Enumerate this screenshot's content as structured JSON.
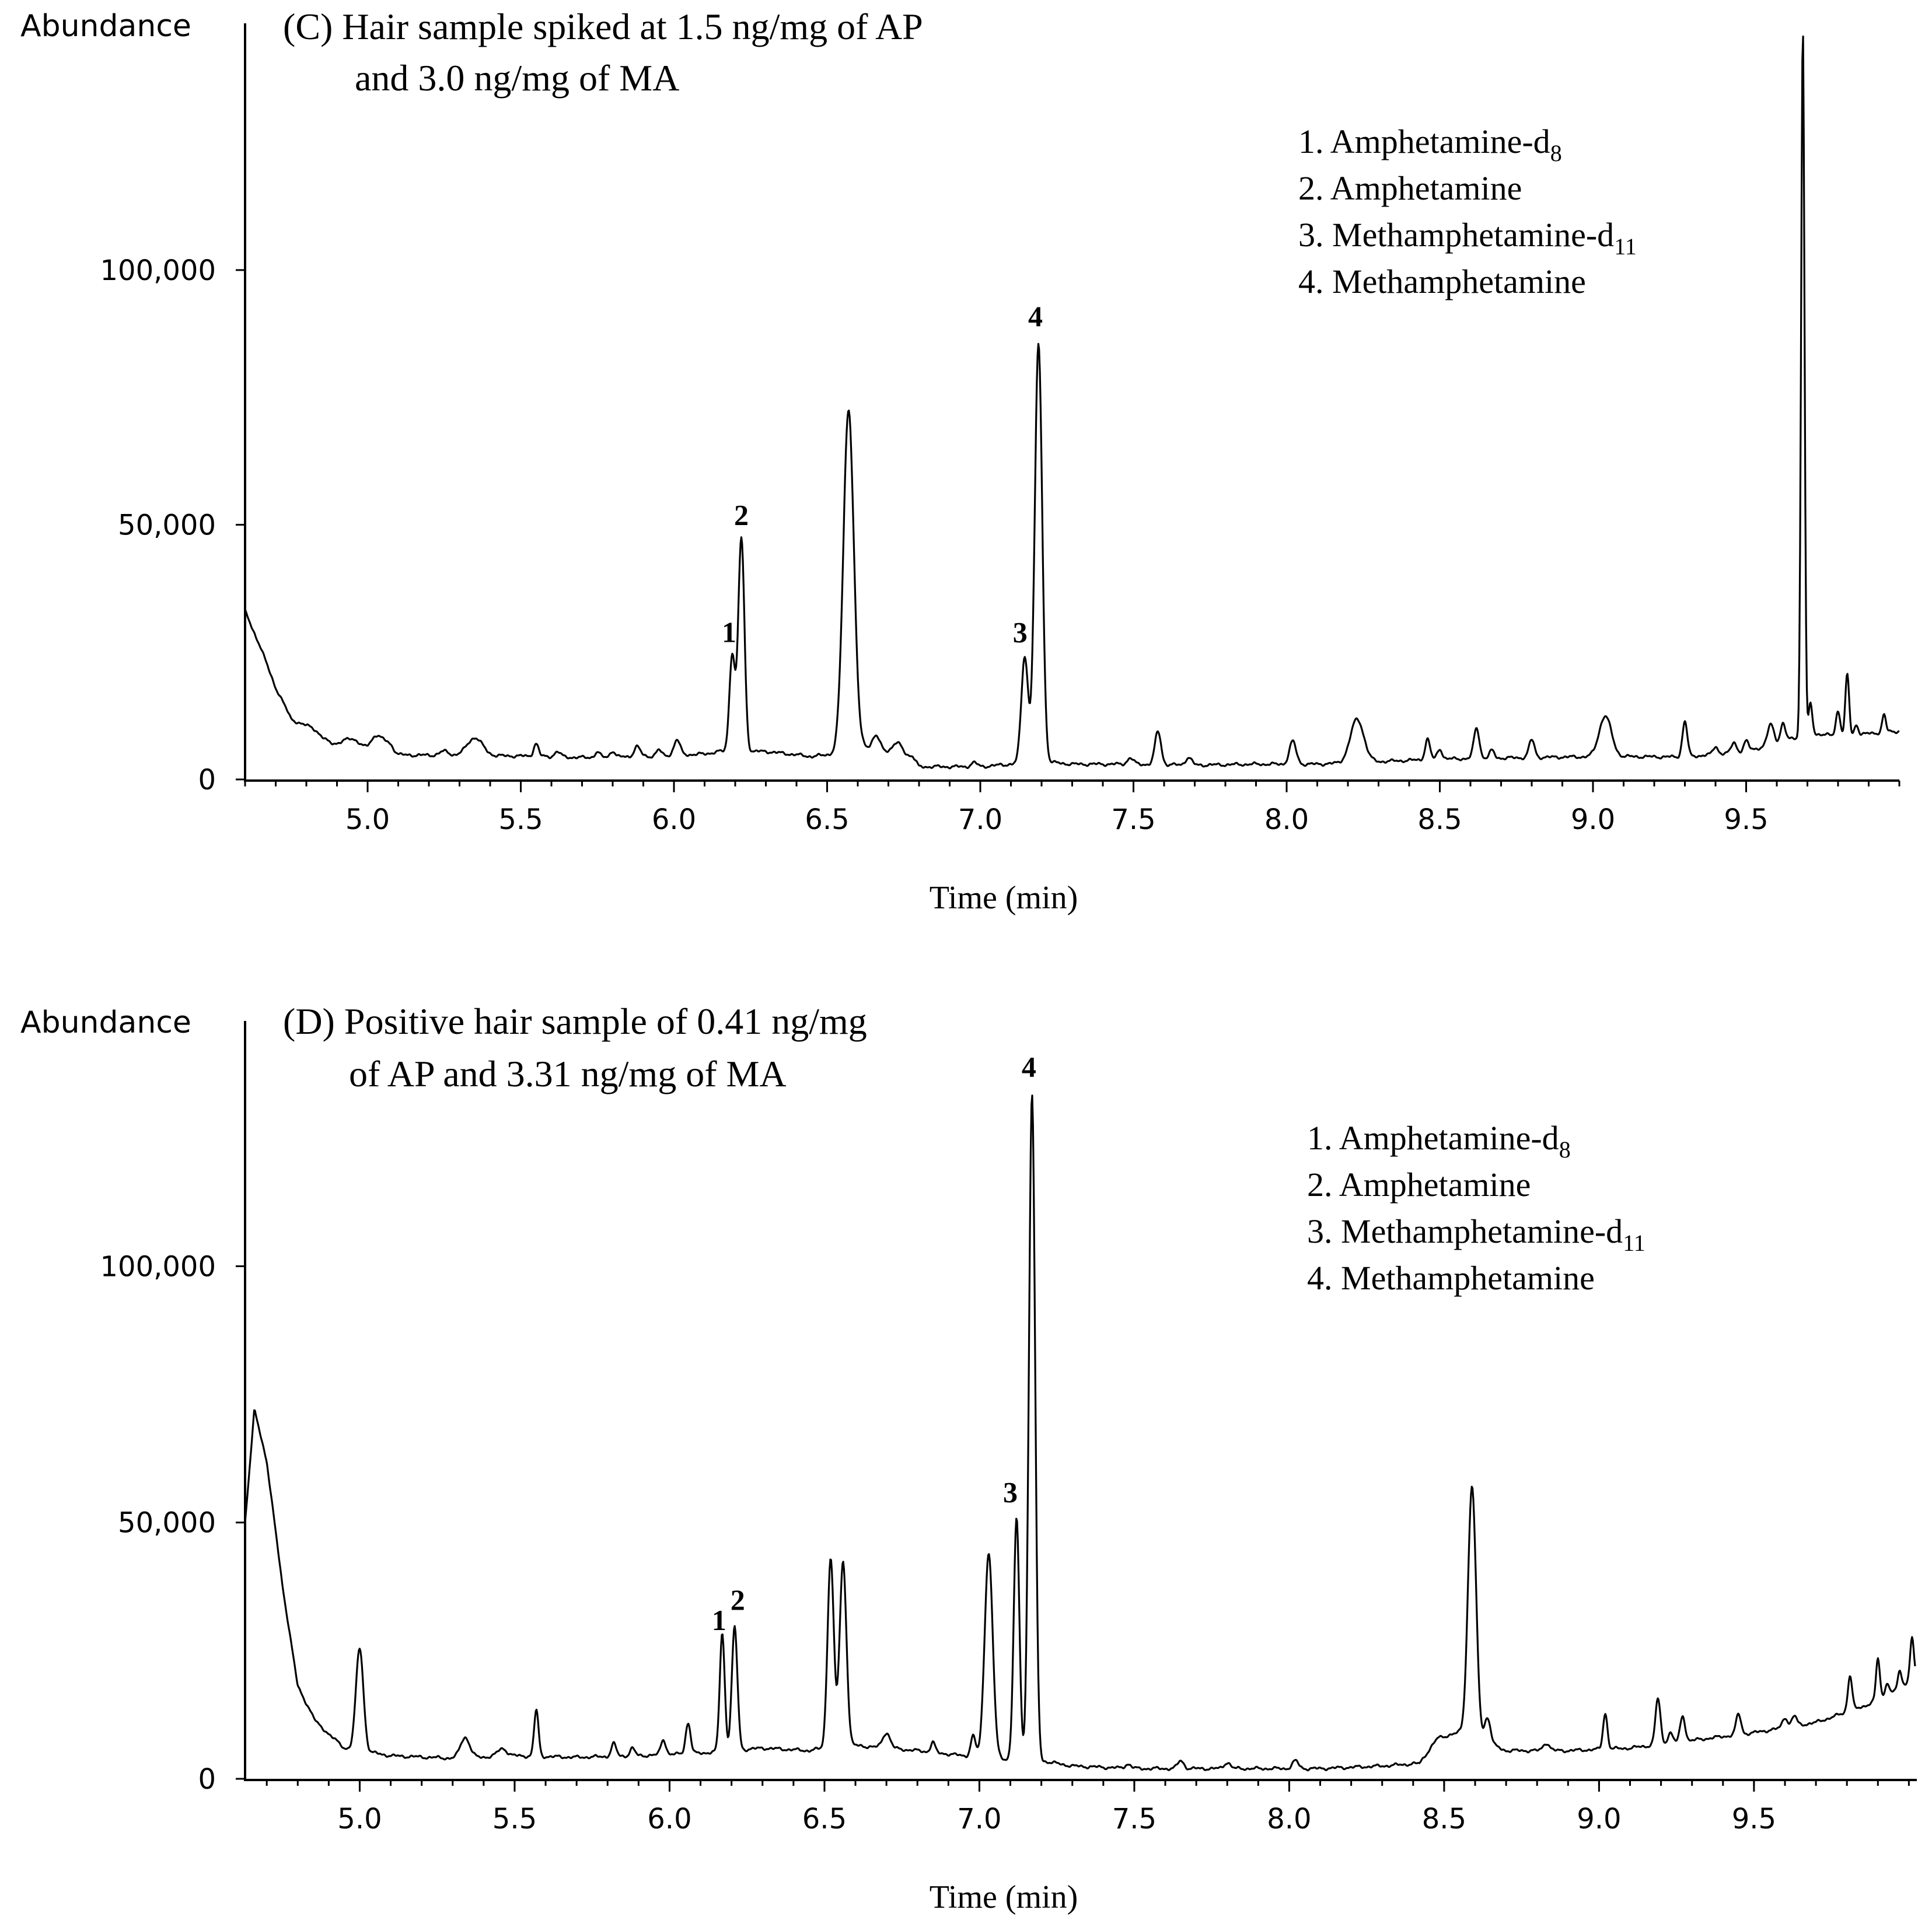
{
  "chart_data": [
    {
      "type": "line",
      "panel": "C",
      "title_line1": "(C) Hair sample spiked at 1.5 ng/mg of AP",
      "title_line2": "and  3.0 ng/mg of MA",
      "ylabel": "Abundance",
      "xlabel": "Time (min)",
      "xlim": [
        4.6,
        10.0
      ],
      "ylim": [
        0,
        145000
      ],
      "xticks": [
        "5.0",
        "5.5",
        "6.0",
        "6.5",
        "7.0",
        "7.5",
        "8.0",
        "8.5",
        "9.0",
        "9.5"
      ],
      "xtick_values": [
        5.0,
        5.5,
        6.0,
        6.5,
        7.0,
        7.5,
        8.0,
        8.5,
        9.0,
        9.5
      ],
      "yticks": [
        "0",
        "50,000",
        "100,000"
      ],
      "ytick_values": [
        0,
        50000,
        100000
      ],
      "legend": [
        {
          "num": "1.",
          "name": "Amphetamine-d",
          "sub": "8"
        },
        {
          "num": "2.",
          "name": "Amphetamine",
          "sub": ""
        },
        {
          "num": "3.",
          "name": "Methamphetamine-d",
          "sub": "11"
        },
        {
          "num": "4.",
          "name": "Methamphetamine",
          "sub": ""
        }
      ],
      "baseline": [
        [
          4.6,
          33000
        ],
        [
          4.65,
          26000
        ],
        [
          4.7,
          18000
        ],
        [
          4.75,
          12000
        ],
        [
          4.85,
          8000
        ],
        [
          4.95,
          5500
        ],
        [
          5.1,
          4800
        ],
        [
          5.3,
          4700
        ],
        [
          5.5,
          4600
        ],
        [
          5.7,
          4300
        ],
        [
          5.9,
          4500
        ],
        [
          6.1,
          5000
        ],
        [
          6.15,
          5500
        ],
        [
          6.3,
          5500
        ],
        [
          6.45,
          4500
        ],
        [
          6.52,
          5000
        ],
        [
          6.62,
          6500
        ],
        [
          6.7,
          5500
        ],
        [
          6.78,
          4500
        ],
        [
          6.8,
          2500
        ],
        [
          7.0,
          2500
        ],
        [
          7.1,
          3000
        ],
        [
          7.2,
          3500
        ],
        [
          7.3,
          3000
        ],
        [
          7.5,
          3000
        ],
        [
          7.7,
          2800
        ],
        [
          7.9,
          3000
        ],
        [
          8.1,
          3000
        ],
        [
          8.3,
          3500
        ],
        [
          8.5,
          4000
        ],
        [
          8.7,
          4200
        ],
        [
          8.9,
          4400
        ],
        [
          9.1,
          4500
        ],
        [
          9.3,
          4400
        ],
        [
          9.5,
          5500
        ],
        [
          9.65,
          8000
        ],
        [
          9.72,
          9000
        ],
        [
          9.8,
          8500
        ],
        [
          9.9,
          9000
        ],
        [
          10.0,
          9500
        ]
      ],
      "peaks": [
        [
          4.82,
          1000,
          0.02
        ],
        [
          4.95,
          2500,
          0.025
        ],
        [
          5.03,
          3500,
          0.02
        ],
        [
          5.07,
          1800,
          0.015
        ],
        [
          5.25,
          800,
          0.015
        ],
        [
          5.35,
          3500,
          0.025
        ],
        [
          5.55,
          2500,
          0.008
        ],
        [
          5.62,
          1000,
          0.01
        ],
        [
          5.75,
          1000,
          0.008
        ],
        [
          5.8,
          1200,
          0.008
        ],
        [
          5.88,
          2000,
          0.01
        ],
        [
          5.95,
          1200,
          0.008
        ],
        [
          6.01,
          3000,
          0.01
        ],
        [
          6.19,
          19000,
          0.009
        ],
        [
          6.22,
          42000,
          0.01
        ],
        [
          6.57,
          67000,
          0.017
        ],
        [
          6.66,
          2500,
          0.012
        ],
        [
          6.73,
          2000,
          0.015
        ],
        [
          6.98,
          800,
          0.01
        ],
        [
          7.145,
          21000,
          0.011
        ],
        [
          7.19,
          82000,
          0.012
        ],
        [
          7.49,
          1200,
          0.01
        ],
        [
          7.58,
          6500,
          0.01
        ],
        [
          7.68,
          1500,
          0.01
        ],
        [
          8.02,
          4500,
          0.011
        ],
        [
          8.23,
          8500,
          0.022
        ],
        [
          8.46,
          4000,
          0.008
        ],
        [
          8.5,
          2000,
          0.008
        ],
        [
          8.62,
          6000,
          0.009
        ],
        [
          8.67,
          1500,
          0.008
        ],
        [
          8.8,
          3500,
          0.009
        ],
        [
          9.04,
          8000,
          0.02
        ],
        [
          9.3,
          7000,
          0.008
        ],
        [
          9.4,
          1500,
          0.008
        ],
        [
          9.46,
          2000,
          0.008
        ],
        [
          9.5,
          2000,
          0.008
        ],
        [
          9.58,
          4000,
          0.01
        ],
        [
          9.62,
          3500,
          0.008
        ],
        [
          9.685,
          139000,
          0.0055
        ],
        [
          9.71,
          6000,
          0.006
        ],
        [
          9.8,
          5000,
          0.007
        ],
        [
          9.83,
          12000,
          0.006
        ],
        [
          9.86,
          2000,
          0.006
        ],
        [
          9.95,
          3500,
          0.006
        ]
      ],
      "peak_labels": [
        {
          "label": "1",
          "x": 6.18,
          "y": 27000
        },
        {
          "label": "2",
          "x": 6.22,
          "y": 50000
        },
        {
          "label": "3",
          "x": 7.13,
          "y": 27000
        },
        {
          "label": "4",
          "x": 7.18,
          "y": 89000
        }
      ]
    },
    {
      "type": "line",
      "panel": "D",
      "title_line1": "(D) Positive hair sample of 0.41 ng/mg",
      "title_line2": "of AP and 3.31 ng/mg of MA",
      "ylabel": "Abundance",
      "xlabel": "Time (min)",
      "xlim": [
        4.63,
        10.02
      ],
      "ylim": [
        0,
        145000
      ],
      "xticks": [
        "5.0",
        "5.5",
        "6.0",
        "6.5",
        "7.0",
        "7.5",
        "8.0",
        "8.5",
        "9.0",
        "9.5"
      ],
      "xtick_values": [
        5.0,
        5.5,
        6.0,
        6.5,
        7.0,
        7.5,
        8.0,
        8.5,
        9.0,
        9.5
      ],
      "yticks": [
        "0",
        "50,000",
        "100,000"
      ],
      "ytick_values": [
        0,
        50000,
        100000
      ],
      "legend": [
        {
          "num": "1.",
          "name": "Amphetamine-d",
          "sub": "8"
        },
        {
          "num": "2.",
          "name": "Amphetamine",
          "sub": ""
        },
        {
          "num": "3.",
          "name": "Methamphetamine-d",
          "sub": "11"
        },
        {
          "num": "4.",
          "name": "Methamphetamine",
          "sub": ""
        }
      ],
      "baseline": [
        [
          4.63,
          50000
        ],
        [
          4.66,
          72000
        ],
        [
          4.7,
          62000
        ],
        [
          4.75,
          38000
        ],
        [
          4.8,
          18000
        ],
        [
          4.86,
          11000
        ],
        [
          4.95,
          6000
        ],
        [
          5.1,
          4500
        ],
        [
          5.3,
          4000
        ],
        [
          5.5,
          4500
        ],
        [
          5.7,
          4200
        ],
        [
          5.9,
          4500
        ],
        [
          6.1,
          5000
        ],
        [
          6.3,
          6000
        ],
        [
          6.45,
          5500
        ],
        [
          6.5,
          6000
        ],
        [
          6.6,
          6500
        ],
        [
          6.8,
          5500
        ],
        [
          6.95,
          4500
        ],
        [
          7.05,
          4000
        ],
        [
          7.2,
          3500
        ],
        [
          7.3,
          2500
        ],
        [
          7.5,
          2000
        ],
        [
          7.7,
          2000
        ],
        [
          7.9,
          2000
        ],
        [
          8.1,
          2000
        ],
        [
          8.3,
          2500
        ],
        [
          8.42,
          3000
        ],
        [
          8.48,
          8000
        ],
        [
          8.55,
          9000
        ],
        [
          8.7,
          5500
        ],
        [
          8.9,
          5500
        ],
        [
          9.1,
          6000
        ],
        [
          9.3,
          7500
        ],
        [
          9.5,
          9000
        ],
        [
          9.7,
          11000
        ],
        [
          9.85,
          14000
        ],
        [
          9.95,
          17000
        ],
        [
          10.02,
          20000
        ]
      ],
      "peaks": [
        [
          5.0,
          20000,
          0.012
        ],
        [
          5.34,
          4000,
          0.015
        ],
        [
          5.46,
          1500,
          0.015
        ],
        [
          5.57,
          9000,
          0.007
        ],
        [
          5.82,
          2500,
          0.008
        ],
        [
          5.88,
          1500,
          0.008
        ],
        [
          5.98,
          3000,
          0.008
        ],
        [
          6.06,
          6000,
          0.008
        ],
        [
          6.17,
          23000,
          0.008
        ],
        [
          6.21,
          24000,
          0.009
        ],
        [
          6.52,
          37000,
          0.01
        ],
        [
          6.56,
          36000,
          0.011
        ],
        [
          6.7,
          3000,
          0.012
        ],
        [
          6.85,
          2000,
          0.007
        ],
        [
          6.98,
          4000,
          0.008
        ],
        [
          7.03,
          40000,
          0.013
        ],
        [
          7.12,
          47000,
          0.009
        ],
        [
          7.17,
          130000,
          0.01
        ],
        [
          7.48,
          800,
          0.01
        ],
        [
          7.65,
          1500,
          0.01
        ],
        [
          7.8,
          1200,
          0.01
        ],
        [
          8.02,
          1500,
          0.01
        ],
        [
          8.59,
          49000,
          0.013
        ],
        [
          8.64,
          5000,
          0.01
        ],
        [
          8.83,
          1500,
          0.01
        ],
        [
          9.02,
          7000,
          0.007
        ],
        [
          9.19,
          9000,
          0.008
        ],
        [
          9.23,
          2000,
          0.008
        ],
        [
          9.27,
          5000,
          0.008
        ],
        [
          9.45,
          4000,
          0.008
        ],
        [
          9.6,
          2000,
          0.008
        ],
        [
          9.63,
          2000,
          0.008
        ],
        [
          9.81,
          7000,
          0.007
        ],
        [
          9.9,
          8000,
          0.006
        ],
        [
          9.93,
          2500,
          0.006
        ],
        [
          9.97,
          3000,
          0.006
        ],
        [
          10.01,
          8000,
          0.006
        ]
      ],
      "peak_labels": [
        {
          "label": "1",
          "x": 6.16,
          "y": 29000
        },
        {
          "label": "2",
          "x": 6.22,
          "y": 33000
        },
        {
          "label": "3",
          "x": 7.1,
          "y": 54000
        },
        {
          "label": "4",
          "x": 7.16,
          "y": 137000
        }
      ]
    }
  ]
}
